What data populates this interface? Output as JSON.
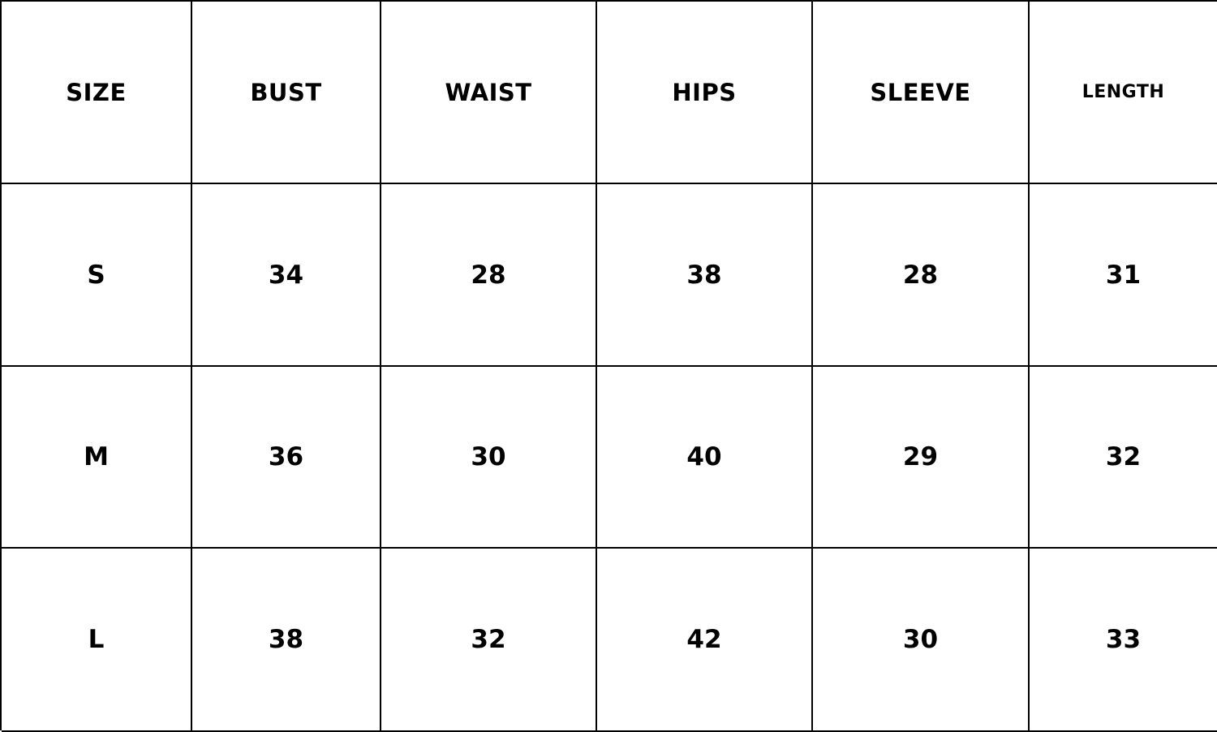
{
  "table": {
    "headers": [
      "SIZE",
      "BUST",
      "WAIST",
      "HIPS",
      "SLEEVE",
      "LENGTH"
    ],
    "rows": [
      [
        "S",
        "34",
        "28",
        "38",
        "28",
        "31"
      ],
      [
        "M",
        "36",
        "30",
        "40",
        "29",
        "32"
      ],
      [
        "L",
        "38",
        "32",
        "42",
        "30",
        "33"
      ]
    ]
  }
}
